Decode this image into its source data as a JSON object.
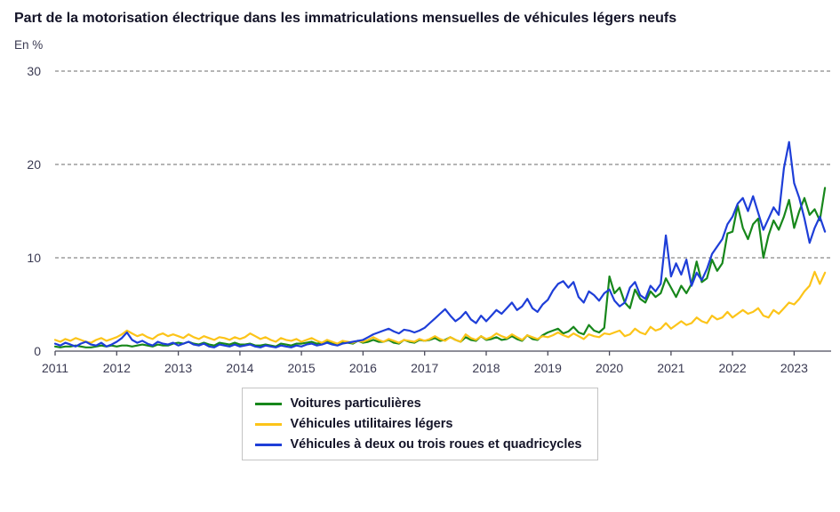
{
  "chart_data": {
    "type": "line",
    "title": "Part de la motorisation électrique dans les immatriculations mensuelles de véhicules légers neufs",
    "ylabel": "En %",
    "x_unit": "month",
    "x_start": 2011,
    "xlim": [
      2011,
      2023.6
    ],
    "ylim": [
      0,
      30
    ],
    "yticks": [
      0,
      10,
      20,
      30
    ],
    "xticks": [
      2011,
      2012,
      2013,
      2014,
      2015,
      2016,
      2017,
      2018,
      2019,
      2020,
      2021,
      2022,
      2023
    ],
    "grid": "horizontal-dashed",
    "legend_position": "bottom-center",
    "series": [
      {
        "name": "Voitures particulières",
        "color": "#17871b",
        "values": [
          0.5,
          0.4,
          0.5,
          0.5,
          0.6,
          0.5,
          0.4,
          0.4,
          0.5,
          0.6,
          0.5,
          0.6,
          0.5,
          0.6,
          0.6,
          0.5,
          0.6,
          0.7,
          0.6,
          0.5,
          0.7,
          0.6,
          0.6,
          0.8,
          0.9,
          0.8,
          1.0,
          0.8,
          0.7,
          0.9,
          0.7,
          0.6,
          0.9,
          0.8,
          0.7,
          0.9,
          0.7,
          0.7,
          0.8,
          0.6,
          0.6,
          0.7,
          0.6,
          0.5,
          0.8,
          0.7,
          0.6,
          0.8,
          0.8,
          0.9,
          1.0,
          0.8,
          0.9,
          1.1,
          0.8,
          0.7,
          1.0,
          0.9,
          0.8,
          1.1,
          0.9,
          1.0,
          1.2,
          1.0,
          1.0,
          1.2,
          0.9,
          0.8,
          1.2,
          1.0,
          0.9,
          1.2,
          1.1,
          1.2,
          1.4,
          1.1,
          1.2,
          1.5,
          1.2,
          1.0,
          1.5,
          1.2,
          1.1,
          1.6,
          1.2,
          1.3,
          1.5,
          1.2,
          1.3,
          1.6,
          1.3,
          1.1,
          1.7,
          1.3,
          1.2,
          1.7,
          2.0,
          2.2,
          2.4,
          1.9,
          2.1,
          2.6,
          2.0,
          1.8,
          2.8,
          2.2,
          2.0,
          2.5,
          8.0,
          6.2,
          6.8,
          5.2,
          4.6,
          6.6,
          5.6,
          5.2,
          6.4,
          5.8,
          6.2,
          7.8,
          6.8,
          5.8,
          7.0,
          6.2,
          7.2,
          9.6,
          7.4,
          7.8,
          9.8,
          8.6,
          9.4,
          12.6,
          12.8,
          15.6,
          13.2,
          12.0,
          13.6,
          14.2,
          10.0,
          12.4,
          14.0,
          13.0,
          14.4,
          16.2,
          13.2,
          15.0,
          16.4,
          14.6,
          15.2,
          14.0,
          17.5
        ]
      },
      {
        "name": "Véhicules utilitaires légers",
        "color": "#fcc419",
        "values": [
          1.2,
          1.0,
          1.3,
          1.1,
          1.4,
          1.2,
          1.0,
          0.9,
          1.2,
          1.4,
          1.1,
          1.3,
          1.5,
          1.8,
          2.2,
          1.9,
          1.6,
          1.8,
          1.5,
          1.3,
          1.7,
          1.9,
          1.6,
          1.8,
          1.6,
          1.4,
          1.8,
          1.5,
          1.3,
          1.6,
          1.4,
          1.2,
          1.5,
          1.4,
          1.2,
          1.5,
          1.3,
          1.5,
          1.9,
          1.6,
          1.3,
          1.5,
          1.2,
          1.0,
          1.4,
          1.2,
          1.1,
          1.3,
          1.0,
          1.2,
          1.4,
          1.1,
          0.9,
          1.2,
          1.0,
          0.8,
          1.1,
          1.0,
          0.9,
          1.1,
          1.0,
          1.2,
          1.5,
          1.2,
          1.0,
          1.3,
          1.1,
          0.9,
          1.2,
          1.1,
          1.0,
          1.3,
          1.1,
          1.3,
          1.6,
          1.3,
          1.1,
          1.5,
          1.2,
          1.0,
          1.8,
          1.4,
          1.2,
          1.6,
          1.3,
          1.5,
          1.9,
          1.6,
          1.4,
          1.8,
          1.5,
          1.2,
          1.7,
          1.5,
          1.3,
          1.6,
          1.5,
          1.7,
          2.0,
          1.7,
          1.5,
          1.9,
          1.6,
          1.3,
          1.8,
          1.6,
          1.5,
          1.9,
          1.8,
          2.0,
          2.2,
          1.6,
          1.8,
          2.4,
          2.0,
          1.8,
          2.6,
          2.2,
          2.4,
          3.0,
          2.4,
          2.8,
          3.2,
          2.8,
          3.0,
          3.6,
          3.2,
          3.0,
          3.8,
          3.4,
          3.6,
          4.2,
          3.6,
          4.0,
          4.4,
          4.0,
          4.2,
          4.6,
          3.8,
          3.6,
          4.4,
          4.0,
          4.6,
          5.2,
          5.0,
          5.6,
          6.4,
          7.0,
          8.5,
          7.2,
          8.4
        ]
      },
      {
        "name": "Véhicules à deux ou trois roues et quadricycles",
        "color": "#1e3ed8",
        "values": [
          0.8,
          0.6,
          0.9,
          0.7,
          0.5,
          0.8,
          1.0,
          0.7,
          0.6,
          0.9,
          0.5,
          0.7,
          1.0,
          1.4,
          2.0,
          1.2,
          0.9,
          1.1,
          0.8,
          0.6,
          1.0,
          0.8,
          0.7,
          0.9,
          0.6,
          0.8,
          1.0,
          0.7,
          0.6,
          0.8,
          0.5,
          0.4,
          0.7,
          0.6,
          0.5,
          0.7,
          0.5,
          0.6,
          0.7,
          0.5,
          0.4,
          0.6,
          0.5,
          0.4,
          0.6,
          0.5,
          0.4,
          0.6,
          0.5,
          0.7,
          0.8,
          0.6,
          0.7,
          0.9,
          0.7,
          0.6,
          0.8,
          0.9,
          1.0,
          1.1,
          1.2,
          1.5,
          1.8,
          2.0,
          2.2,
          2.4,
          2.1,
          1.9,
          2.3,
          2.2,
          2.0,
          2.2,
          2.5,
          3.0,
          3.5,
          4.0,
          4.5,
          3.8,
          3.2,
          3.6,
          4.2,
          3.4,
          3.0,
          3.8,
          3.2,
          3.8,
          4.4,
          4.0,
          4.6,
          5.2,
          4.4,
          4.8,
          5.6,
          4.6,
          4.2,
          5.0,
          5.5,
          6.5,
          7.2,
          7.5,
          6.8,
          7.4,
          5.8,
          5.2,
          6.4,
          6.0,
          5.4,
          6.2,
          6.6,
          5.4,
          4.8,
          5.2,
          6.8,
          7.4,
          6.0,
          5.6,
          7.0,
          6.4,
          7.2,
          12.4,
          8.0,
          9.4,
          8.2,
          9.8,
          7.0,
          8.4,
          7.6,
          8.8,
          10.4,
          11.2,
          12.0,
          13.6,
          14.4,
          15.8,
          16.4,
          15.0,
          16.6,
          14.8,
          13.0,
          14.2,
          15.4,
          14.6,
          19.6,
          22.4,
          18.0,
          16.4,
          14.2,
          11.6,
          13.2,
          14.4,
          12.8
        ]
      }
    ]
  }
}
